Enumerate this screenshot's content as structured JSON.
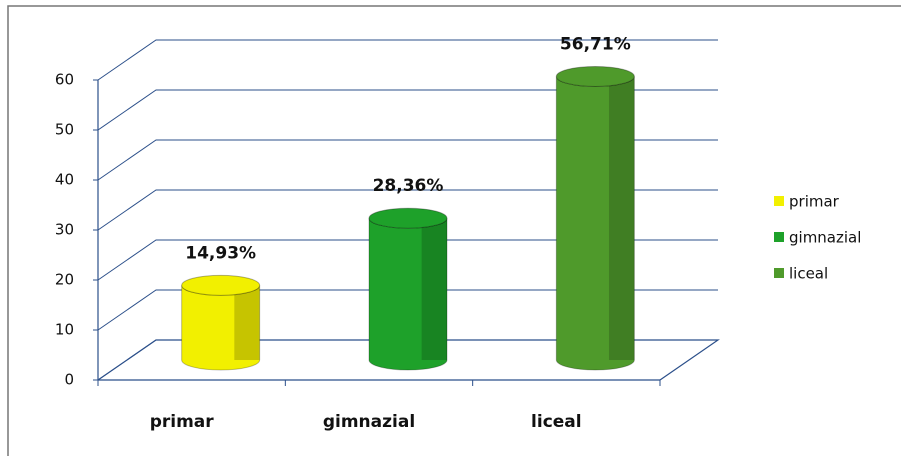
{
  "chart_data": {
    "type": "bar3d",
    "categories": [
      "primar",
      "gimnazial",
      "liceal"
    ],
    "values": [
      14.93,
      28.36,
      56.71
    ],
    "value_labels": [
      "14,93%",
      "28,36%",
      "56,71%"
    ],
    "colors": [
      "#f2f000",
      "#1ea12a",
      "#4f9a2b"
    ],
    "ylim": [
      0,
      60
    ],
    "yticks": [
      0,
      10,
      20,
      30,
      40,
      50,
      60
    ],
    "grid": true,
    "legend": "right"
  }
}
